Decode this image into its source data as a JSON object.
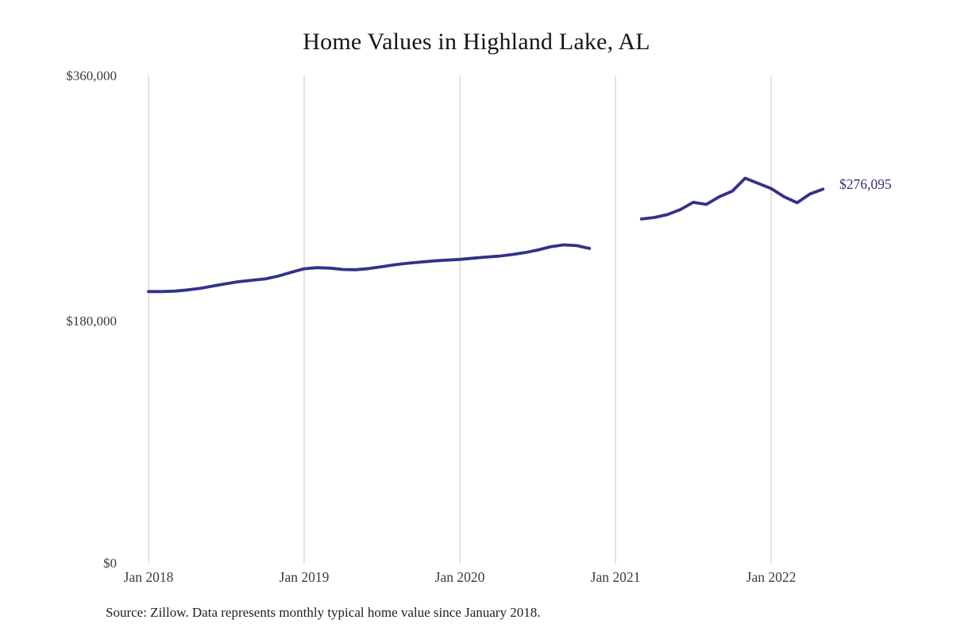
{
  "chart_data": {
    "type": "line",
    "title": "Home Values in Highland Lake, AL",
    "source_note": "Source: Zillow. Data represents monthly typical home value since January 2018.",
    "end_label": "$276,095",
    "line_color": "#32328a",
    "gridline_color": "#c9c9c9",
    "ylim": [
      0,
      360000
    ],
    "y_ticks": [
      {
        "label": "$0",
        "value": 0
      },
      {
        "label": "$180,000",
        "value": 180000
      },
      {
        "label": "$360,000",
        "value": 360000
      }
    ],
    "x_ticks": [
      {
        "label": "Jan 2018",
        "month_index": 0
      },
      {
        "label": "Jan 2019",
        "month_index": 12
      },
      {
        "label": "Jan 2020",
        "month_index": 24
      },
      {
        "label": "Jan 2021",
        "month_index": 36
      },
      {
        "label": "Jan 2022",
        "month_index": 48
      }
    ],
    "months": [
      "Jan 2018",
      "Feb 2018",
      "Mar 2018",
      "Apr 2018",
      "May 2018",
      "Jun 2018",
      "Jul 2018",
      "Aug 2018",
      "Sep 2018",
      "Oct 2018",
      "Nov 2018",
      "Dec 2018",
      "Jan 2019",
      "Feb 2019",
      "Mar 2019",
      "Apr 2019",
      "May 2019",
      "Jun 2019",
      "Jul 2019",
      "Aug 2019",
      "Sep 2019",
      "Oct 2019",
      "Nov 2019",
      "Dec 2019",
      "Jan 2020",
      "Feb 2020",
      "Mar 2020",
      "Apr 2020",
      "May 2020",
      "Jun 2020",
      "Jul 2020",
      "Aug 2020",
      "Sep 2020",
      "Oct 2020",
      "Nov 2020",
      "Dec 2020",
      "Jan 2021",
      "Feb 2021",
      "Mar 2021",
      "Apr 2021",
      "May 2021",
      "Jun 2021",
      "Jul 2021",
      "Aug 2021",
      "Sep 2021",
      "Oct 2021",
      "Nov 2021",
      "Dec 2021",
      "Jan 2022",
      "Feb 2022",
      "Mar 2022",
      "Apr 2022",
      "May 2022"
    ],
    "series": [
      {
        "name": "Typical home value",
        "values": [
          200600,
          200600,
          200900,
          201800,
          203000,
          204700,
          206400,
          207900,
          209000,
          209900,
          212000,
          214800,
          217400,
          218200,
          217900,
          216900,
          216700,
          217600,
          218900,
          220400,
          221500,
          222400,
          223200,
          223800,
          224300,
          225200,
          226000,
          226700,
          227800,
          229300,
          231200,
          233600,
          235000,
          234500,
          232400,
          null,
          null,
          null,
          254100,
          255200,
          257300,
          261100,
          266400,
          264900,
          270500,
          274600,
          284200,
          280400,
          276600,
          270500,
          266100,
          272600,
          276095
        ]
      }
    ],
    "legend": "none",
    "grid": "vertical-only"
  }
}
